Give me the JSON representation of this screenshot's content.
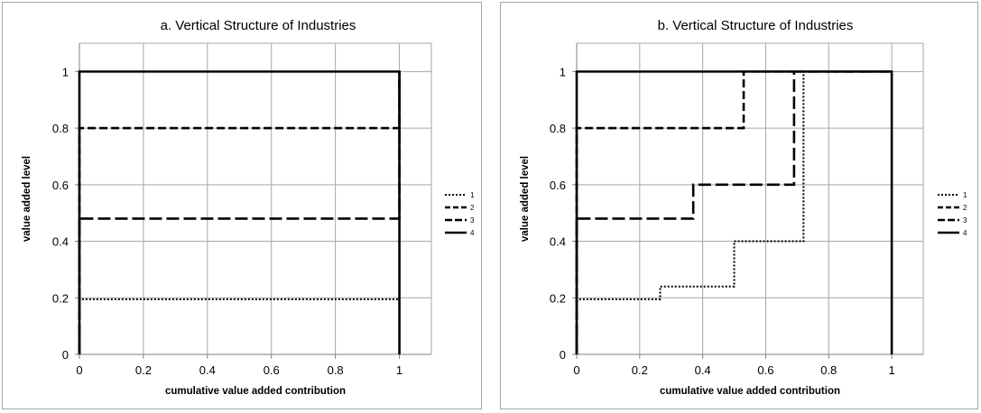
{
  "chart_data": [
    {
      "type": "line",
      "title": "a. Vertical Structure of Industries",
      "xlabel": "cumulative value added contribution",
      "ylabel": "value added level",
      "xlim": [
        0,
        1.1
      ],
      "ylim": [
        0,
        1.1
      ],
      "x_ticks": [
        "0",
        "0.2",
        "0.4",
        "0.6",
        "0.8",
        "1"
      ],
      "y_ticks": [
        "0",
        "0.2",
        "0.4",
        "0.6",
        "0.8",
        "1"
      ],
      "grid": true,
      "legend_position": "right",
      "series": [
        {
          "name": "1",
          "style": "dotted",
          "x": [
            0,
            0,
            1,
            1
          ],
          "y": [
            0,
            0.195,
            0.195,
            1
          ]
        },
        {
          "name": "2",
          "style": "dashed",
          "x": [
            0,
            0,
            1,
            1
          ],
          "y": [
            0,
            0.8,
            0.8,
            1
          ]
        },
        {
          "name": "3",
          "style": "long-dashed",
          "x": [
            0,
            0,
            1,
            1
          ],
          "y": [
            0,
            0.48,
            0.48,
            1
          ]
        },
        {
          "name": "4",
          "style": "solid",
          "x": [
            0,
            0,
            1,
            1
          ],
          "y": [
            0,
            1,
            1,
            0
          ]
        }
      ]
    },
    {
      "type": "line",
      "title": "b. Vertical Structure of Industries",
      "xlabel": "cumulative value added contribution",
      "ylabel": "value added level",
      "xlim": [
        0,
        1.1
      ],
      "ylim": [
        0,
        1.1
      ],
      "x_ticks": [
        "0",
        "0.2",
        "0.4",
        "0.6",
        "0.8",
        "1"
      ],
      "y_ticks": [
        "0",
        "0.2",
        "0.4",
        "0.6",
        "0.8",
        "1"
      ],
      "grid": true,
      "legend_position": "right",
      "series": [
        {
          "name": "1",
          "style": "dotted",
          "x": [
            0,
            0,
            0.265,
            0.265,
            0.5,
            0.5,
            0.72,
            0.72
          ],
          "y": [
            0,
            0.195,
            0.195,
            0.24,
            0.24,
            0.4,
            0.4,
            1
          ]
        },
        {
          "name": "2",
          "style": "dashed",
          "x": [
            0,
            0,
            0.53,
            0.53,
            1
          ],
          "y": [
            0,
            0.8,
            0.8,
            1,
            1
          ]
        },
        {
          "name": "3",
          "style": "long-dashed",
          "x": [
            0,
            0,
            0.37,
            0.37,
            0.69,
            0.69,
            1
          ],
          "y": [
            0,
            0.48,
            0.48,
            0.6,
            0.6,
            1,
            1
          ]
        },
        {
          "name": "4",
          "style": "solid",
          "x": [
            0,
            0,
            1,
            1
          ],
          "y": [
            0,
            1,
            1,
            0
          ]
        }
      ]
    }
  ]
}
